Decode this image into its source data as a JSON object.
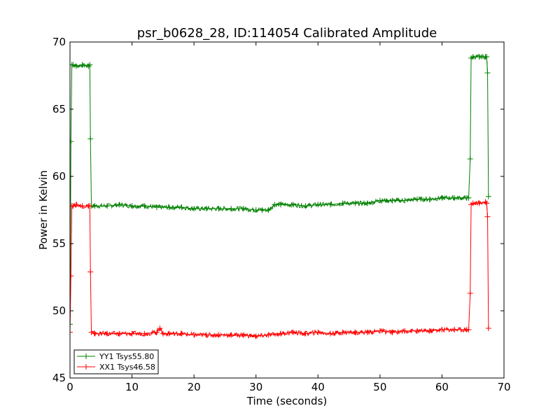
{
  "chart_data": {
    "type": "line",
    "title": "psr_b0628_28, ID:114054 Calibrated Amplitude",
    "xlabel": "Time (seconds)",
    "ylabel": "Power in Kelvin",
    "xlim": [
      0,
      70
    ],
    "ylim": [
      45,
      70
    ],
    "x_ticks": [
      0,
      10,
      20,
      30,
      40,
      50,
      60,
      70
    ],
    "y_ticks": [
      45,
      50,
      55,
      60,
      65,
      70
    ],
    "grid": false,
    "legend_position": "lower-left",
    "series": [
      {
        "name": "YY1 Tsys55.80",
        "color": "#008000",
        "marker": "+",
        "x": [
          0.0,
          0.15,
          0.3,
          0.5,
          1.0,
          2.0,
          3.0,
          3.2,
          3.3,
          3.45,
          4,
          6,
          8,
          10,
          12,
          14,
          16,
          18,
          20,
          22,
          24,
          26,
          28,
          30,
          31,
          32,
          33,
          34,
          36,
          38,
          40,
          42,
          44,
          46,
          48,
          50,
          52,
          54,
          56,
          58,
          60,
          62,
          64,
          64.3,
          64.55,
          64.7,
          65,
          66,
          67,
          67.2,
          67.35,
          67.5
        ],
        "y": [
          49.0,
          62.6,
          68.3,
          68.3,
          68.2,
          68.3,
          68.2,
          68.3,
          62.8,
          57.8,
          57.8,
          57.8,
          57.9,
          57.8,
          57.8,
          57.7,
          57.7,
          57.7,
          57.6,
          57.6,
          57.6,
          57.6,
          57.6,
          57.5,
          57.5,
          57.5,
          57.9,
          57.9,
          57.9,
          57.8,
          57.9,
          57.9,
          58.0,
          58.0,
          58.0,
          58.2,
          58.2,
          58.2,
          58.3,
          58.3,
          58.4,
          58.4,
          58.4,
          58.4,
          61.3,
          68.8,
          68.9,
          68.9,
          68.9,
          68.9,
          67.7,
          58.5
        ]
      },
      {
        "name": "XX1 Tsys46.58",
        "color": "#ff0000",
        "marker": "+",
        "x": [
          0.0,
          0.15,
          0.3,
          0.5,
          1.0,
          2.0,
          3.0,
          3.2,
          3.3,
          3.45,
          4,
          6,
          8,
          10,
          12,
          14,
          14.5,
          15,
          16,
          18,
          20,
          22,
          24,
          26,
          28,
          30,
          32,
          34,
          36,
          38,
          40,
          42,
          44,
          46,
          48,
          50,
          52,
          54,
          56,
          58,
          60,
          62,
          64,
          64.3,
          64.55,
          64.7,
          65,
          66,
          67,
          67.2,
          67.35,
          67.5
        ],
        "y": [
          48.4,
          52.6,
          57.8,
          57.8,
          57.9,
          57.8,
          57.8,
          57.8,
          52.9,
          48.4,
          48.3,
          48.3,
          48.3,
          48.3,
          48.3,
          48.4,
          48.7,
          48.3,
          48.3,
          48.3,
          48.2,
          48.2,
          48.2,
          48.2,
          48.2,
          48.1,
          48.2,
          48.3,
          48.4,
          48.3,
          48.4,
          48.3,
          48.4,
          48.4,
          48.4,
          48.5,
          48.4,
          48.5,
          48.5,
          48.5,
          48.6,
          48.6,
          48.6,
          48.6,
          51.3,
          57.9,
          58.0,
          58.0,
          58.1,
          58.0,
          57.0,
          48.7
        ]
      }
    ]
  }
}
